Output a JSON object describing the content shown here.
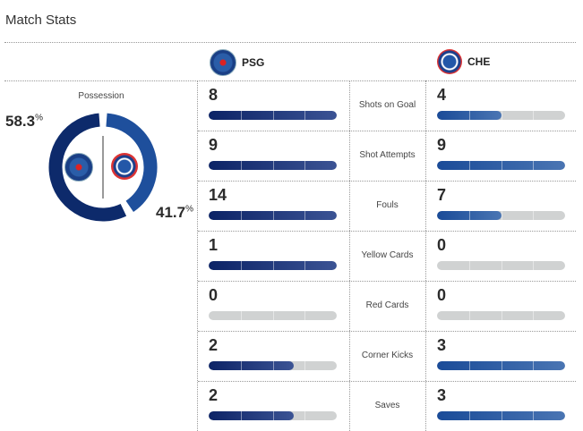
{
  "title": "Match Stats",
  "teams": {
    "home": {
      "abbr": "PSG",
      "color": "#0d2a6b"
    },
    "away": {
      "abbr": "CHE",
      "color": "#1e4f9c"
    }
  },
  "possession": {
    "label": "Possession",
    "home": "58.3",
    "away": "41.7",
    "unit": "%",
    "home_value": 58.3,
    "away_value": 41.7
  },
  "stats": [
    {
      "label": "Shots on Goal",
      "home": 8,
      "away": 4
    },
    {
      "label": "Shot Attempts",
      "home": 9,
      "away": 9
    },
    {
      "label": "Fouls",
      "home": 14,
      "away": 7
    },
    {
      "label": "Yellow Cards",
      "home": 1,
      "away": 0
    },
    {
      "label": "Red Cards",
      "home": 0,
      "away": 0
    },
    {
      "label": "Corner Kicks",
      "home": 2,
      "away": 3
    },
    {
      "label": "Saves",
      "home": 2,
      "away": 3
    }
  ]
}
